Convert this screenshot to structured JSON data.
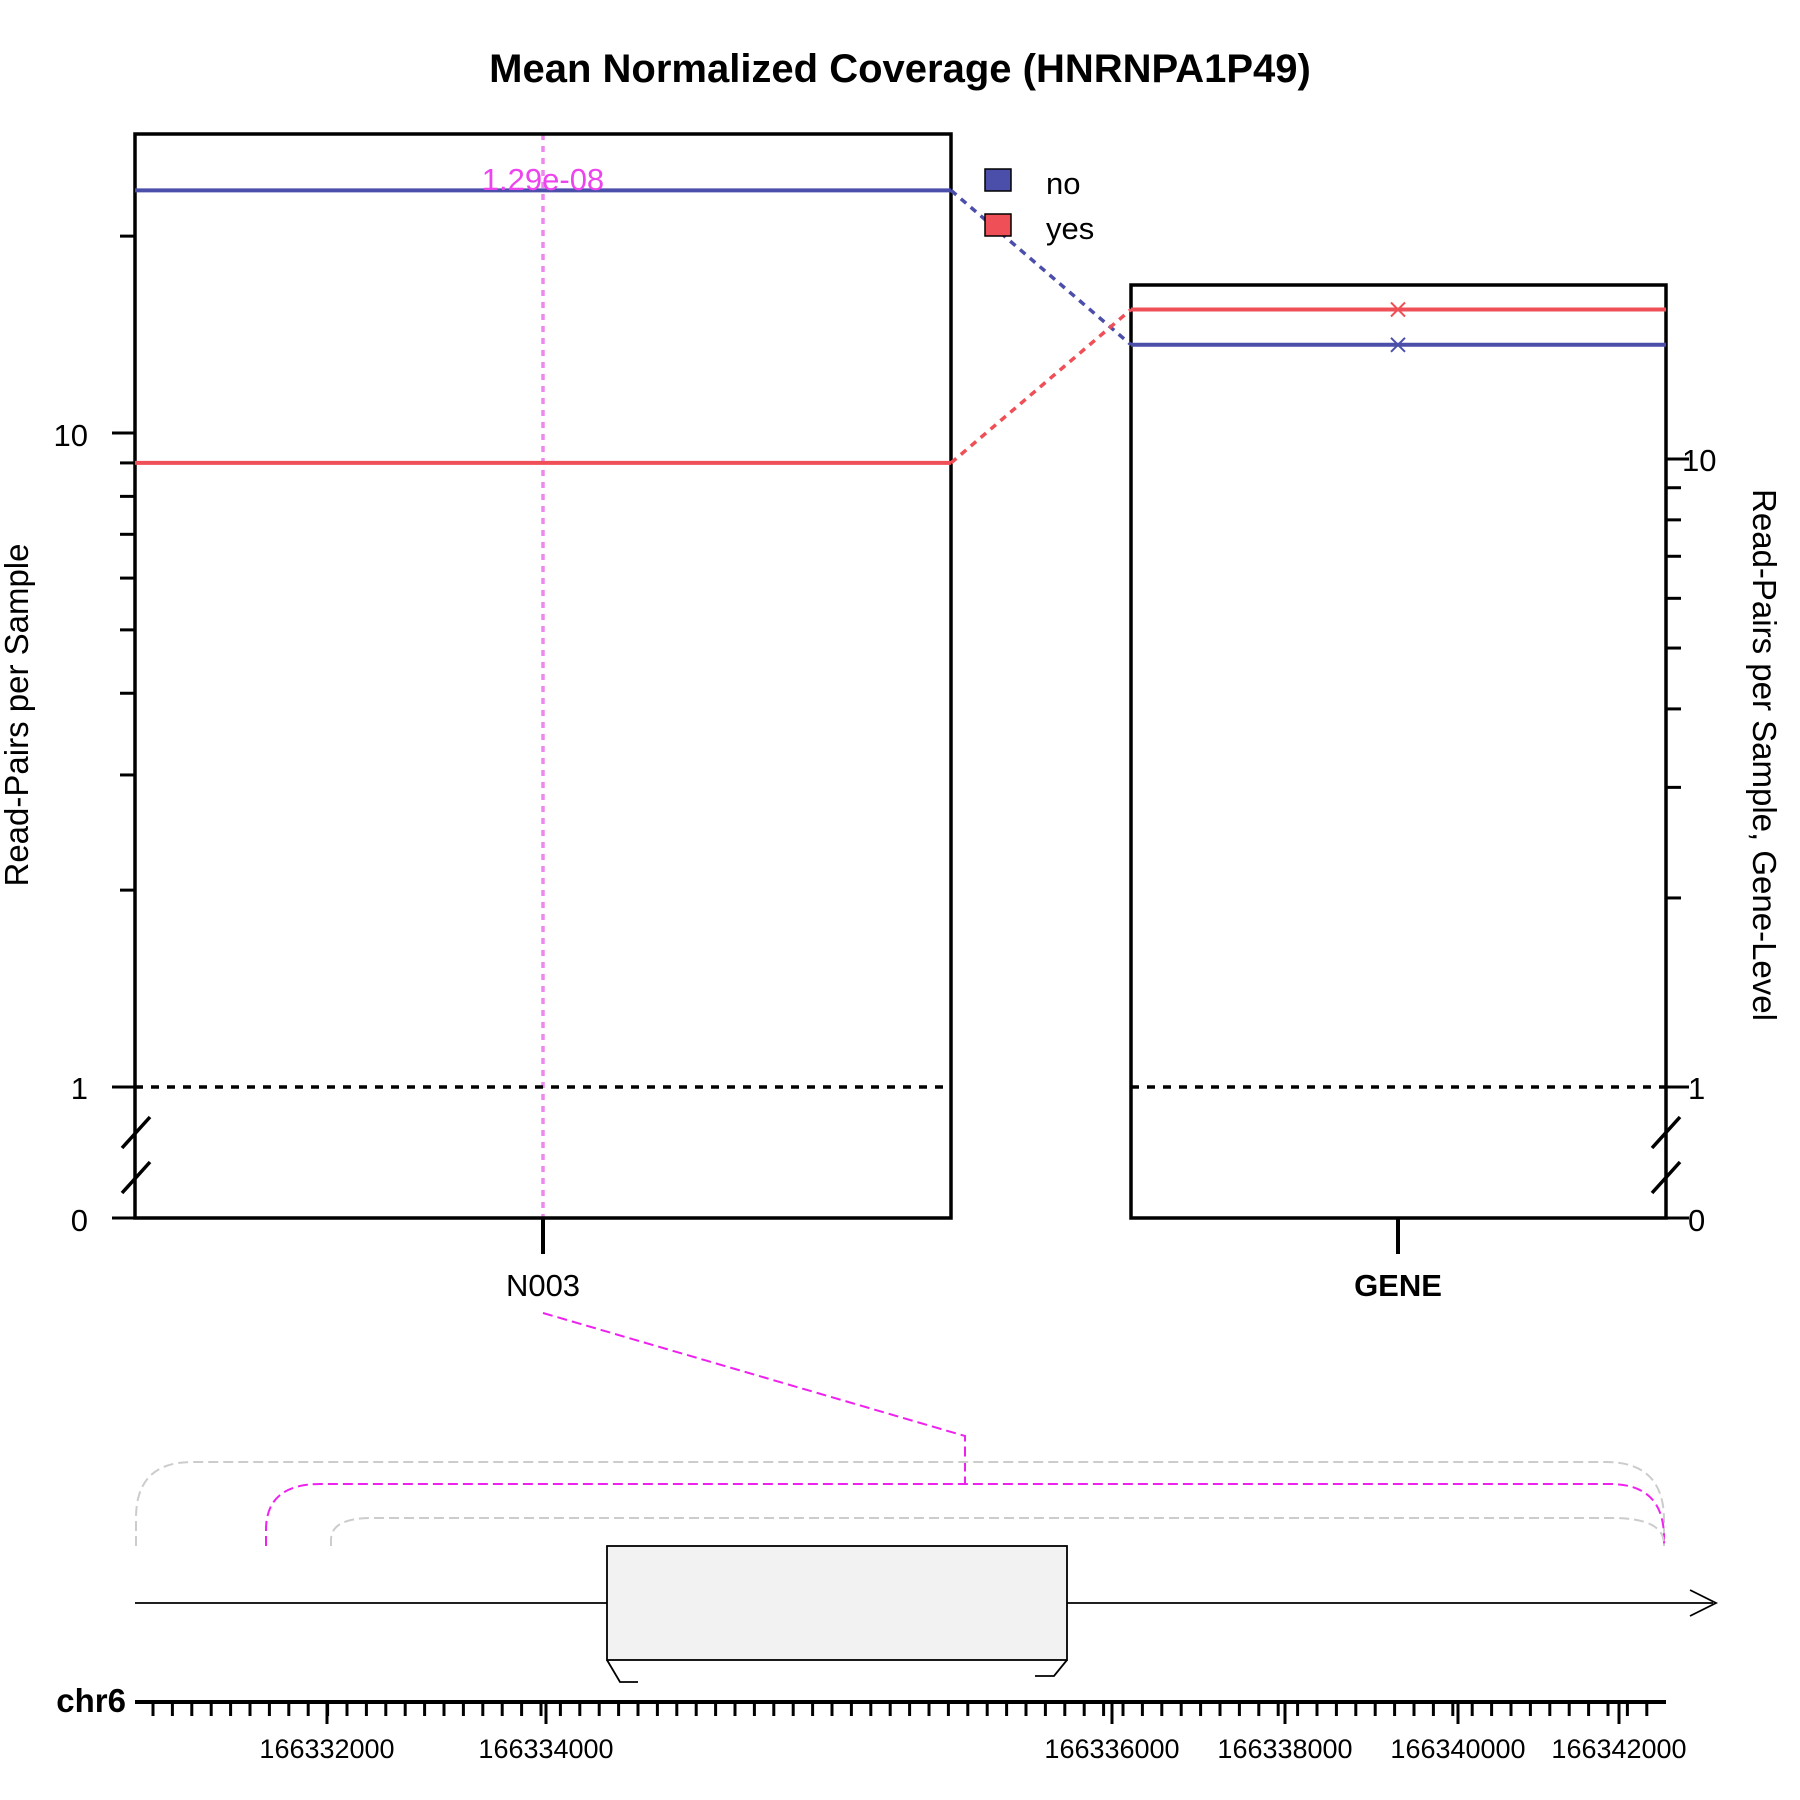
{
  "chart_data": {
    "type": "line",
    "title": "Mean Normalized Coverage (HNRNPA1P49)",
    "colors": {
      "no": "#4c4faa",
      "yes": "#ef4f56",
      "highlight": "#ee22ee",
      "highlight_light": "#ee88ee"
    },
    "legend": {
      "placement": "top-right",
      "entries": [
        "no",
        "yes"
      ]
    },
    "left_panel": {
      "ylabel": "Read-Pairs per Sample",
      "yscale": "log (broken axis)",
      "yticks": [
        "0",
        "1",
        "10"
      ],
      "xtick": "N003",
      "series": [
        {
          "name": "no",
          "value": 23.5
        },
        {
          "name": "yes",
          "value": 9.0
        }
      ],
      "reference_line": 1,
      "annotation": {
        "text": "1.29e-08",
        "x": "N003"
      }
    },
    "right_panel": {
      "ylabel": "Read-Pairs per Sample, Gene-Level",
      "yscale": "log (broken axis)",
      "yticks": [
        "0",
        "1",
        "10"
      ],
      "xtick": "GENE",
      "series": [
        {
          "name": "no",
          "value": 15.2
        },
        {
          "name": "yes",
          "value": 17.3
        }
      ],
      "reference_line": 1
    },
    "gene_track": {
      "chromosome": "chr6",
      "tick_labels": [
        "166332000",
        "166334000",
        "166336000",
        "166338000",
        "166340000",
        "166342000"
      ]
    }
  }
}
